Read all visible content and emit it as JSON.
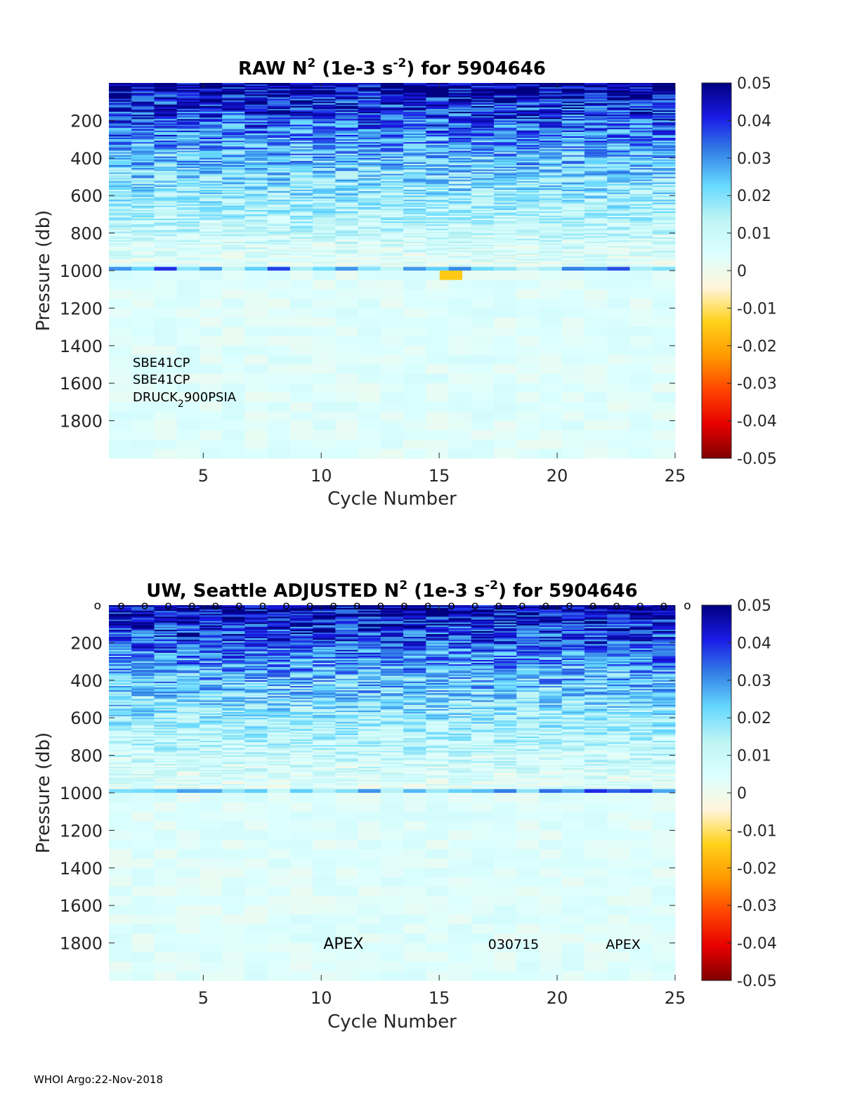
{
  "footer": "WHOI Argo:22-Nov-2018",
  "colormap": {
    "stops": [
      "#800000",
      "#e60000",
      "#ff4400",
      "#ff9900",
      "#ffd21a",
      "#fff5dc",
      "#dcffff",
      "#bff4f4",
      "#66d9ff",
      "#3380e6",
      "#1a1ae6",
      "#000080"
    ]
  },
  "chart_data": [
    {
      "type": "heatmap",
      "title": {
        "pre": "RAW N",
        "sup1": "2",
        "mid": " (1e-3 s",
        "sup2": "-2",
        "post": ") for 5904646"
      },
      "xlabel": "Cycle Number",
      "ylabel": "Pressure (db)",
      "xlim": [
        1,
        25
      ],
      "ylim": [
        0,
        2000
      ],
      "xticks": [
        5,
        10,
        15,
        20,
        25
      ],
      "yticks": [
        200,
        400,
        600,
        800,
        1000,
        1200,
        1400,
        1600,
        1800
      ],
      "clim": [
        -0.05,
        0.05
      ],
      "cticks": [
        "0.05",
        "0.04",
        "0.03",
        "0.02",
        "0.01",
        "0",
        "-0.01",
        "-0.02",
        "-0.03",
        "-0.04",
        "-0.05"
      ],
      "cycles": [
        1,
        2,
        3,
        4,
        5,
        6,
        7,
        8,
        9,
        10,
        11,
        12,
        13,
        14,
        15,
        16,
        17,
        18,
        19,
        20,
        21,
        22,
        23,
        24,
        25
      ],
      "layers": [
        {
          "p_top": 0,
          "p_bottom": 1000,
          "surface_value": 0.05,
          "deep_value": 0.003
        },
        {
          "p_top": 1000,
          "p_bottom": 2000,
          "value": 0.004
        }
      ],
      "features": [
        {
          "cycle": 15.5,
          "p_top": 1000,
          "p_bottom": 1050,
          "value": -0.015
        }
      ],
      "annotations": [
        {
          "name": "sensor-line-1",
          "text": "SBE41CP"
        },
        {
          "name": "sensor-line-2",
          "text": "SBE41CP"
        },
        {
          "name": "sensor-line-3",
          "pre": "DRUCK",
          "sub": "2",
          "post": "900PSIA"
        }
      ]
    },
    {
      "type": "heatmap",
      "title": {
        "pre": "UW, Seattle  ADJUSTED N",
        "sup1": "2",
        "mid": " (1e-3 s",
        "sup2": "-2",
        "post": ") for 5904646"
      },
      "xlabel": "Cycle Number",
      "ylabel": "Pressure (db)",
      "xlim": [
        1,
        25
      ],
      "ylim": [
        0,
        2000
      ],
      "xticks": [
        5,
        10,
        15,
        20,
        25
      ],
      "yticks": [
        200,
        400,
        600,
        800,
        1000,
        1200,
        1400,
        1600,
        1800
      ],
      "clim": [
        -0.05,
        0.05
      ],
      "cticks": [
        "0.05",
        "0.04",
        "0.03",
        "0.02",
        "0.01",
        "0",
        "-0.01",
        "-0.02",
        "-0.03",
        "-0.04",
        "-0.05"
      ],
      "cycles": [
        1,
        2,
        3,
        4,
        5,
        6,
        7,
        8,
        9,
        10,
        11,
        12,
        13,
        14,
        15,
        16,
        17,
        18,
        19,
        20,
        21,
        22,
        23,
        24,
        25
      ],
      "surface_markers": {
        "symbol": "o",
        "cycles": [
          1,
          2,
          3,
          4,
          5,
          6,
          7,
          8,
          9,
          10,
          11,
          12,
          13,
          14,
          15,
          16,
          17,
          18,
          19,
          20,
          21,
          22,
          23,
          24,
          25,
          26
        ]
      },
      "layers": [
        {
          "p_top": 0,
          "p_bottom": 1000,
          "surface_value": 0.05,
          "deep_value": 0.003
        },
        {
          "p_top": 1000,
          "p_bottom": 2000,
          "value": 0.004
        }
      ],
      "annotations": [
        {
          "name": "float-type-left",
          "text": "APEX"
        },
        {
          "name": "deploy-date",
          "text": "030715"
        },
        {
          "name": "float-type-right",
          "text": "APEX"
        }
      ]
    }
  ]
}
